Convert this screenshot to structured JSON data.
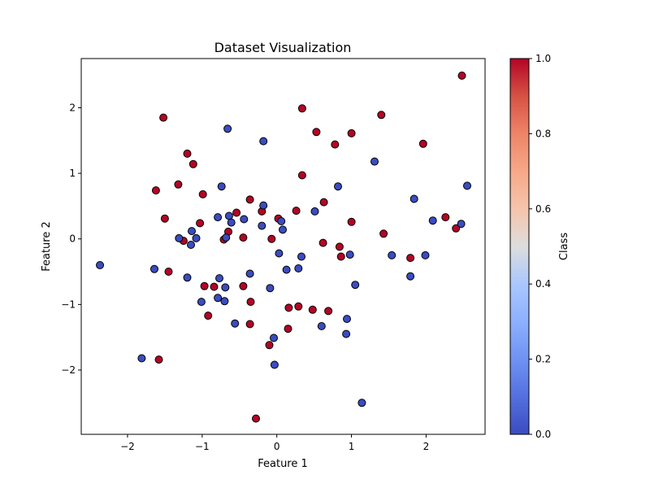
{
  "chart_data": {
    "type": "scatter",
    "title": "Dataset Visualization",
    "xlabel": "Feature 1",
    "ylabel": "Feature 2",
    "xlim": [
      -2.62,
      2.79
    ],
    "ylim": [
      -2.98,
      2.75
    ],
    "xticks": [
      -2,
      -1,
      0,
      1,
      2
    ],
    "yticks": [
      -2,
      -1,
      0,
      1,
      2
    ],
    "grid": false,
    "colorbar": {
      "label": "Class",
      "range": [
        0.0,
        1.0
      ],
      "ticks": [
        0.0,
        0.2,
        0.4,
        0.6,
        0.8,
        1.0
      ],
      "colormap": "coolwarm",
      "low_color": "#3b4cc0",
      "mid_color": "#dddddd",
      "high_color": "#b40426"
    },
    "points": [
      {
        "x": 2.48,
        "y": 2.49,
        "class": 1
      },
      {
        "x": 0.34,
        "y": 1.99,
        "class": 1
      },
      {
        "x": 1.4,
        "y": 1.89,
        "class": 1
      },
      {
        "x": -1.52,
        "y": 1.85,
        "class": 1
      },
      {
        "x": 0.53,
        "y": 1.63,
        "class": 1
      },
      {
        "x": 1.0,
        "y": 1.61,
        "class": 1
      },
      {
        "x": 0.78,
        "y": 1.44,
        "class": 1
      },
      {
        "x": 1.96,
        "y": 1.45,
        "class": 1
      },
      {
        "x": -1.2,
        "y": 1.3,
        "class": 1
      },
      {
        "x": -1.12,
        "y": 1.14,
        "class": 1
      },
      {
        "x": 0.34,
        "y": 0.97,
        "class": 1
      },
      {
        "x": -1.32,
        "y": 0.83,
        "class": 1
      },
      {
        "x": -1.62,
        "y": 0.74,
        "class": 1
      },
      {
        "x": -0.99,
        "y": 0.68,
        "class": 1
      },
      {
        "x": -0.36,
        "y": 0.6,
        "class": 1
      },
      {
        "x": 0.63,
        "y": 0.56,
        "class": 1
      },
      {
        "x": 0.26,
        "y": 0.43,
        "class": 1
      },
      {
        "x": -0.54,
        "y": 0.4,
        "class": 1
      },
      {
        "x": -0.2,
        "y": 0.42,
        "class": 1
      },
      {
        "x": 2.26,
        "y": 0.33,
        "class": 1
      },
      {
        "x": -1.5,
        "y": 0.31,
        "class": 1
      },
      {
        "x": 0.02,
        "y": 0.31,
        "class": 1
      },
      {
        "x": 1.0,
        "y": 0.26,
        "class": 1
      },
      {
        "x": -1.03,
        "y": 0.24,
        "class": 1
      },
      {
        "x": 2.4,
        "y": 0.16,
        "class": 1
      },
      {
        "x": -0.65,
        "y": 0.11,
        "class": 1
      },
      {
        "x": 1.43,
        "y": 0.08,
        "class": 1
      },
      {
        "x": -0.45,
        "y": 0.02,
        "class": 1
      },
      {
        "x": -0.07,
        "y": 0.0,
        "class": 1
      },
      {
        "x": -0.71,
        "y": -0.01,
        "class": 1
      },
      {
        "x": -1.25,
        "y": -0.03,
        "class": 1
      },
      {
        "x": 0.62,
        "y": -0.06,
        "class": 1
      },
      {
        "x": 0.84,
        "y": -0.12,
        "class": 1
      },
      {
        "x": 0.86,
        "y": -0.27,
        "class": 1
      },
      {
        "x": 1.79,
        "y": -0.29,
        "class": 1
      },
      {
        "x": -1.45,
        "y": -0.5,
        "class": 1
      },
      {
        "x": -0.97,
        "y": -0.72,
        "class": 1
      },
      {
        "x": -0.84,
        "y": -0.73,
        "class": 1
      },
      {
        "x": -0.45,
        "y": -0.72,
        "class": 1
      },
      {
        "x": -0.35,
        "y": -0.96,
        "class": 1
      },
      {
        "x": 0.16,
        "y": -1.05,
        "class": 1
      },
      {
        "x": 0.29,
        "y": -1.03,
        "class": 1
      },
      {
        "x": 0.48,
        "y": -1.08,
        "class": 1
      },
      {
        "x": 0.69,
        "y": -1.1,
        "class": 1
      },
      {
        "x": -0.92,
        "y": -1.17,
        "class": 1
      },
      {
        "x": -0.36,
        "y": -1.3,
        "class": 1
      },
      {
        "x": 0.15,
        "y": -1.37,
        "class": 1
      },
      {
        "x": -0.1,
        "y": -1.62,
        "class": 1
      },
      {
        "x": -1.58,
        "y": -1.84,
        "class": 1
      },
      {
        "x": -0.28,
        "y": -2.74,
        "class": 1
      },
      {
        "x": -0.66,
        "y": 1.68,
        "class": 0
      },
      {
        "x": -0.18,
        "y": 1.49,
        "class": 0
      },
      {
        "x": 1.31,
        "y": 1.18,
        "class": 0
      },
      {
        "x": 2.55,
        "y": 0.81,
        "class": 0
      },
      {
        "x": -0.74,
        "y": 0.8,
        "class": 0
      },
      {
        "x": 0.82,
        "y": 0.8,
        "class": 0
      },
      {
        "x": 1.84,
        "y": 0.61,
        "class": 0
      },
      {
        "x": -0.18,
        "y": 0.51,
        "class": 0
      },
      {
        "x": 0.51,
        "y": 0.42,
        "class": 0
      },
      {
        "x": -0.64,
        "y": 0.35,
        "class": 0
      },
      {
        "x": -0.79,
        "y": 0.33,
        "class": 0
      },
      {
        "x": -0.44,
        "y": 0.3,
        "class": 0
      },
      {
        "x": 0.06,
        "y": 0.27,
        "class": 0
      },
      {
        "x": -0.61,
        "y": 0.25,
        "class": 0
      },
      {
        "x": 2.09,
        "y": 0.28,
        "class": 0
      },
      {
        "x": 2.47,
        "y": 0.23,
        "class": 0
      },
      {
        "x": -0.2,
        "y": 0.2,
        "class": 0
      },
      {
        "x": 0.08,
        "y": 0.14,
        "class": 0
      },
      {
        "x": -1.14,
        "y": 0.12,
        "class": 0
      },
      {
        "x": -0.68,
        "y": 0.02,
        "class": 0
      },
      {
        "x": -1.08,
        "y": 0.01,
        "class": 0
      },
      {
        "x": -1.31,
        "y": 0.01,
        "class": 0
      },
      {
        "x": -1.15,
        "y": -0.09,
        "class": 0
      },
      {
        "x": 0.03,
        "y": -0.22,
        "class": 0
      },
      {
        "x": 0.98,
        "y": -0.24,
        "class": 0
      },
      {
        "x": 1.54,
        "y": -0.25,
        "class": 0
      },
      {
        "x": 1.99,
        "y": -0.25,
        "class": 0
      },
      {
        "x": 0.33,
        "y": -0.27,
        "class": 0
      },
      {
        "x": 0.29,
        "y": -0.45,
        "class": 0
      },
      {
        "x": 0.13,
        "y": -0.47,
        "class": 0
      },
      {
        "x": -1.64,
        "y": -0.46,
        "class": 0
      },
      {
        "x": -0.36,
        "y": -0.53,
        "class": 0
      },
      {
        "x": 1.79,
        "y": -0.57,
        "class": 0
      },
      {
        "x": -1.2,
        "y": -0.59,
        "class": 0
      },
      {
        "x": -0.77,
        "y": -0.6,
        "class": 0
      },
      {
        "x": 1.05,
        "y": -0.7,
        "class": 0
      },
      {
        "x": -0.69,
        "y": -0.74,
        "class": 0
      },
      {
        "x": -0.09,
        "y": -0.75,
        "class": 0
      },
      {
        "x": -0.79,
        "y": -0.9,
        "class": 0
      },
      {
        "x": -1.01,
        "y": -0.96,
        "class": 0
      },
      {
        "x": -0.7,
        "y": -0.95,
        "class": 0
      },
      {
        "x": 0.94,
        "y": -1.22,
        "class": 0
      },
      {
        "x": -0.56,
        "y": -1.29,
        "class": 0
      },
      {
        "x": 0.6,
        "y": -1.33,
        "class": 0
      },
      {
        "x": 0.93,
        "y": -1.45,
        "class": 0
      },
      {
        "x": -0.04,
        "y": -1.51,
        "class": 0
      },
      {
        "x": -1.81,
        "y": -1.82,
        "class": 0
      },
      {
        "x": -0.03,
        "y": -1.92,
        "class": 0
      },
      {
        "x": 1.14,
        "y": -2.5,
        "class": 0
      },
      {
        "x": -2.37,
        "y": -0.4,
        "class": 0
      }
    ]
  }
}
